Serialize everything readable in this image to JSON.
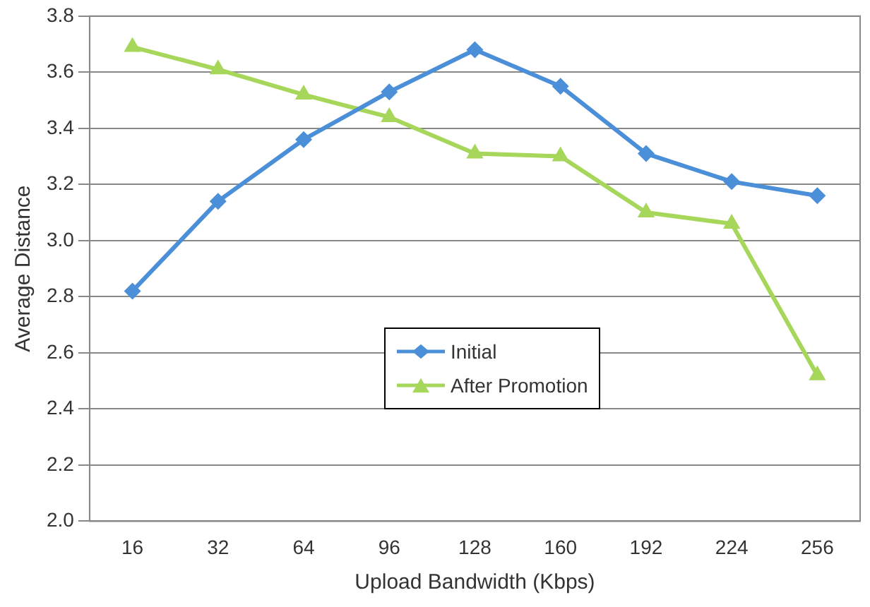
{
  "chart_data": {
    "type": "line",
    "xlabel": "Upload Bandwidth (Kbps)",
    "ylabel": "Average Distance",
    "categories": [
      "16",
      "32",
      "64",
      "96",
      "128",
      "160",
      "192",
      "224",
      "256"
    ],
    "series": [
      {
        "name": "Initial",
        "color": "#4a8fd8",
        "marker": "diamond",
        "values": [
          2.82,
          3.14,
          3.36,
          3.53,
          3.68,
          3.55,
          3.31,
          3.21,
          3.16
        ]
      },
      {
        "name": "After Promotion",
        "color": "#a6d65a",
        "marker": "triangle",
        "values": [
          3.69,
          3.61,
          3.52,
          3.44,
          3.31,
          3.3,
          3.1,
          3.06,
          2.52
        ]
      }
    ],
    "ylim": [
      2.0,
      3.8
    ],
    "yticks": [
      {
        "value": 2.0,
        "label": "2.0"
      },
      {
        "value": 2.2,
        "label": "2.2"
      },
      {
        "value": 2.4,
        "label": "2.4"
      },
      {
        "value": 2.6,
        "label": "2.6"
      },
      {
        "value": 2.8,
        "label": "2.8"
      },
      {
        "value": 3.0,
        "label": "3.0"
      },
      {
        "value": 3.2,
        "label": "3.2"
      },
      {
        "value": 3.4,
        "label": "3.4"
      },
      {
        "value": 3.6,
        "label": "3.6"
      },
      {
        "value": 3.8,
        "label": "3.8"
      }
    ],
    "grid": "y",
    "legend": "bottom",
    "line_style": "solid"
  }
}
